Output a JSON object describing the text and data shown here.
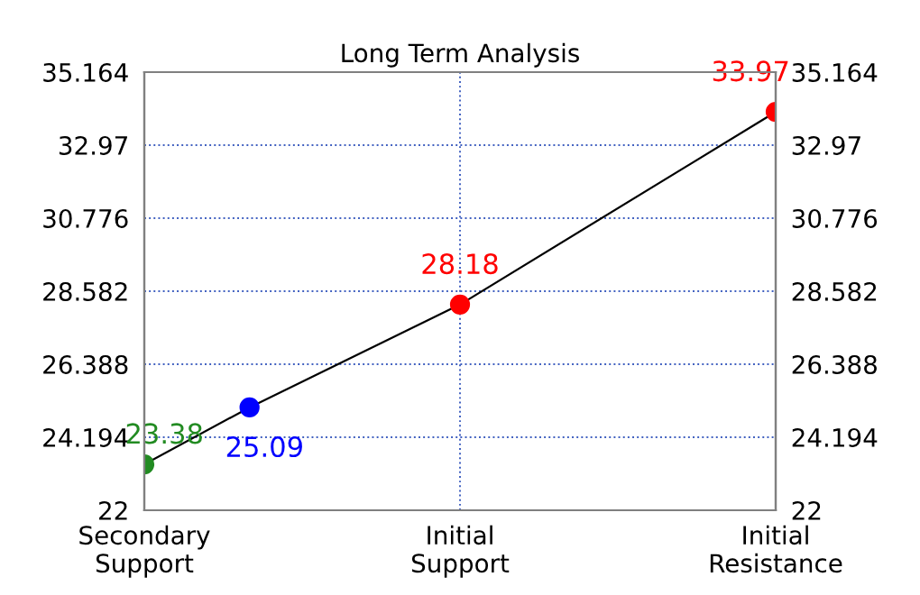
{
  "chart_data": {
    "type": "line",
    "title": "Long Term Analysis",
    "categories": [
      "Secondary\nSupport",
      null,
      null,
      "Initial\nSupport",
      null,
      null,
      "Initial\nResistance"
    ],
    "ylim": [
      22,
      35.164
    ],
    "yticks": [
      22,
      24.194,
      26.388,
      28.582,
      30.776,
      32.97,
      35.164
    ],
    "y2lim": [
      22,
      35.164
    ],
    "y2ticks": [
      22,
      24.194,
      26.388,
      28.582,
      30.776,
      32.97,
      35.164
    ],
    "grid": true,
    "marker": "circle",
    "line_style": "solid",
    "series": [
      {
        "color": "#000000",
        "values": [
          23.38,
          25.09,
          null,
          28.18,
          null,
          null,
          33.97
        ],
        "colors": [
          "#228b22",
          "#0000ff",
          null,
          "#ff0000",
          null,
          null,
          "#ff0000"
        ],
        "value_labels": [
          "23.38",
          "25.09",
          null,
          "28.18",
          null,
          null,
          "33.97"
        ]
      }
    ]
  }
}
